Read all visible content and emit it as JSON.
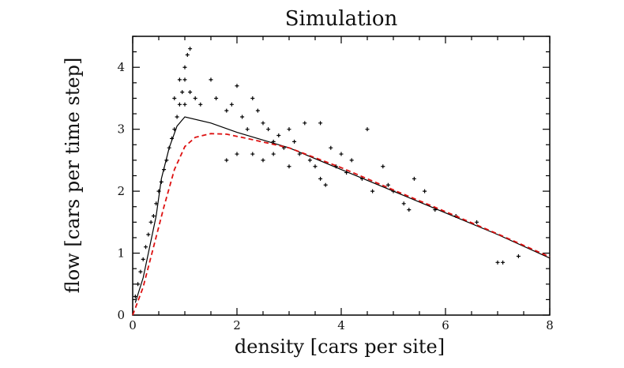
{
  "chart_data": {
    "type": "scatter",
    "title": "Simulation",
    "xlabel": "density [cars per site]",
    "ylabel": "flow [cars per time step]",
    "xlim": [
      0,
      8
    ],
    "ylim": [
      0,
      4.5
    ],
    "xticks": [
      0,
      2,
      4,
      6,
      8
    ],
    "yticks": [
      0,
      1,
      2,
      3,
      4
    ],
    "grid": false,
    "series": [
      {
        "kind": "points",
        "color": "#000000",
        "points": [
          [
            0.05,
            0.3
          ],
          [
            0.1,
            0.5
          ],
          [
            0.15,
            0.7
          ],
          [
            0.2,
            0.9
          ],
          [
            0.25,
            1.1
          ],
          [
            0.3,
            1.3
          ],
          [
            0.35,
            1.5
          ],
          [
            0.4,
            1.6
          ],
          [
            0.45,
            1.8
          ],
          [
            0.5,
            2.0
          ],
          [
            0.55,
            2.15
          ],
          [
            0.6,
            2.35
          ],
          [
            0.65,
            2.5
          ],
          [
            0.7,
            2.7
          ],
          [
            0.75,
            2.85
          ],
          [
            0.8,
            3.0
          ],
          [
            0.85,
            3.2
          ],
          [
            0.9,
            3.4
          ],
          [
            0.95,
            3.6
          ],
          [
            1.0,
            3.8
          ],
          [
            1.0,
            4.0
          ],
          [
            1.05,
            4.2
          ],
          [
            1.1,
            4.3
          ],
          [
            0.8,
            3.5
          ],
          [
            0.9,
            3.8
          ],
          [
            1.0,
            3.4
          ],
          [
            1.1,
            3.6
          ],
          [
            1.2,
            3.5
          ],
          [
            1.3,
            3.4
          ],
          [
            1.5,
            3.8
          ],
          [
            1.6,
            3.5
          ],
          [
            1.8,
            3.3
          ],
          [
            1.9,
            3.4
          ],
          [
            2.0,
            3.7
          ],
          [
            2.1,
            3.2
          ],
          [
            2.2,
            3.0
          ],
          [
            2.3,
            3.5
          ],
          [
            2.4,
            3.3
          ],
          [
            2.5,
            3.1
          ],
          [
            2.6,
            3.0
          ],
          [
            2.7,
            2.8
          ],
          [
            2.8,
            2.9
          ],
          [
            2.9,
            2.7
          ],
          [
            3.0,
            3.0
          ],
          [
            3.1,
            2.8
          ],
          [
            3.2,
            2.6
          ],
          [
            3.3,
            3.1
          ],
          [
            3.4,
            2.5
          ],
          [
            3.5,
            2.4
          ],
          [
            3.6,
            3.1
          ],
          [
            3.6,
            2.2
          ],
          [
            3.7,
            2.1
          ],
          [
            3.8,
            2.7
          ],
          [
            3.9,
            2.4
          ],
          [
            4.0,
            2.6
          ],
          [
            4.1,
            2.3
          ],
          [
            4.2,
            2.5
          ],
          [
            4.4,
            2.2
          ],
          [
            4.5,
            3.0
          ],
          [
            4.6,
            2.0
          ],
          [
            4.8,
            2.4
          ],
          [
            4.9,
            2.1
          ],
          [
            5.0,
            2.0
          ],
          [
            5.2,
            1.8
          ],
          [
            5.3,
            1.7
          ],
          [
            5.4,
            2.2
          ],
          [
            5.6,
            2.0
          ],
          [
            5.8,
            1.7
          ],
          [
            6.2,
            1.6
          ],
          [
            6.6,
            1.5
          ],
          [
            7.0,
            0.85
          ],
          [
            7.1,
            0.85
          ],
          [
            7.4,
            0.95
          ],
          [
            1.8,
            2.5
          ],
          [
            2.0,
            2.6
          ],
          [
            2.3,
            2.6
          ],
          [
            2.5,
            2.5
          ],
          [
            2.7,
            2.6
          ],
          [
            3.0,
            2.4
          ]
        ]
      },
      {
        "kind": "line",
        "name": "",
        "color": "#000000",
        "style": "solid",
        "points": [
          [
            0.05,
            0.2
          ],
          [
            0.2,
            0.6
          ],
          [
            0.3,
            1.0
          ],
          [
            0.45,
            1.6
          ],
          [
            0.55,
            2.2
          ],
          [
            0.7,
            2.7
          ],
          [
            0.85,
            3.05
          ],
          [
            1.0,
            3.2
          ],
          [
            1.5,
            3.1
          ],
          [
            2.0,
            2.95
          ],
          [
            3.0,
            2.7
          ],
          [
            4.0,
            2.35
          ],
          [
            5.0,
            2.0
          ],
          [
            6.0,
            1.65
          ],
          [
            7.0,
            1.3
          ],
          [
            8.0,
            0.92
          ]
        ]
      },
      {
        "kind": "line",
        "name": "",
        "color": "#dd1111",
        "style": "dashed",
        "points": [
          [
            0.0,
            0.0
          ],
          [
            0.2,
            0.45
          ],
          [
            0.4,
            1.1
          ],
          [
            0.6,
            1.75
          ],
          [
            0.8,
            2.35
          ],
          [
            1.0,
            2.72
          ],
          [
            1.2,
            2.87
          ],
          [
            1.5,
            2.93
          ],
          [
            1.8,
            2.92
          ],
          [
            2.2,
            2.85
          ],
          [
            3.0,
            2.7
          ],
          [
            4.0,
            2.38
          ],
          [
            5.0,
            2.02
          ],
          [
            6.0,
            1.67
          ],
          [
            7.0,
            1.31
          ],
          [
            8.0,
            0.94
          ]
        ]
      }
    ]
  }
}
